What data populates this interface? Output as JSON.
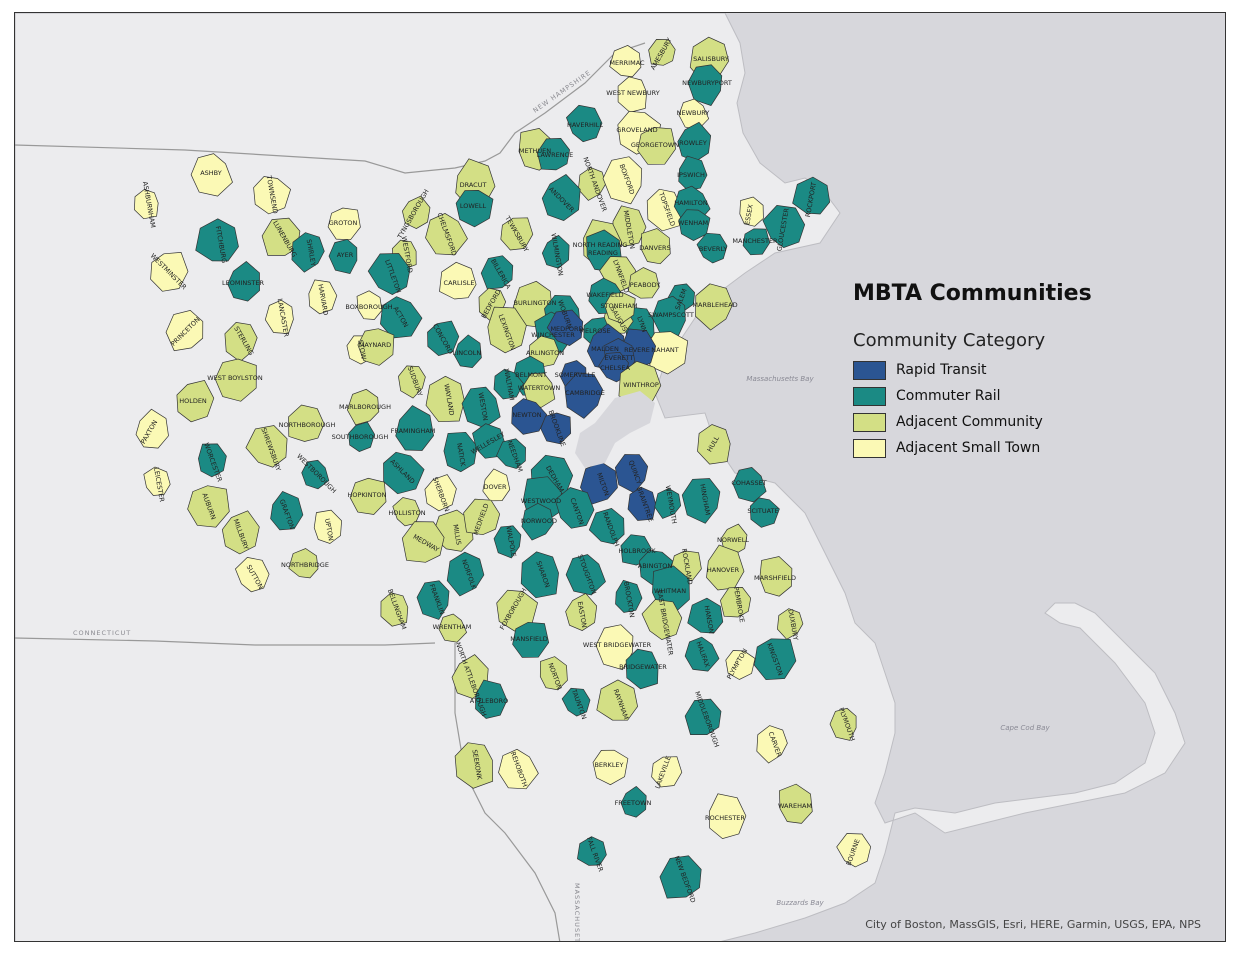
{
  "title": "MBTA Communities",
  "legend": {
    "heading": "Community Category",
    "items": [
      {
        "label": "Rapid Transit",
        "color": "#2b5592"
      },
      {
        "label": "Commuter Rail",
        "color": "#1b8a84"
      },
      {
        "label": "Adjacent Community",
        "color": "#d3df85"
      },
      {
        "label": "Adjacent Small Town",
        "color": "#fbf9b5"
      }
    ]
  },
  "attribution": "City of Boston, MassGIS, Esri, HERE, Garmin, USGS, EPA, NPS",
  "water_labels": [
    "Massachusetts Bay",
    "Cape Cod Bay",
    "Buzzards Bay"
  ],
  "state_labels": [
    "NEW HAMPSHIRE",
    "CONNECTICUT",
    "MASSACHUSETTS"
  ],
  "towns": [
    {
      "name": "ASHBURNHAM",
      "category": "Adjacent Small Town"
    },
    {
      "name": "ASHBY",
      "category": "Adjacent Small Town"
    },
    {
      "name": "TOWNSEND",
      "category": "Adjacent Small Town"
    },
    {
      "name": "GROTON",
      "category": "Adjacent Small Town"
    },
    {
      "name": "TYNGSBOROUGH",
      "category": "Adjacent Community"
    },
    {
      "name": "DRACUT",
      "category": "Adjacent Community"
    },
    {
      "name": "METHUEN",
      "category": "Adjacent Community"
    },
    {
      "name": "HAVERHILL",
      "category": "Commuter Rail"
    },
    {
      "name": "MERRIMAC",
      "category": "Adjacent Small Town"
    },
    {
      "name": "AMESBURY",
      "category": "Adjacent Community"
    },
    {
      "name": "SALISBURY",
      "category": "Adjacent Community"
    },
    {
      "name": "NEWBURYPORT",
      "category": "Commuter Rail"
    },
    {
      "name": "WEST NEWBURY",
      "category": "Adjacent Small Town"
    },
    {
      "name": "NEWBURY",
      "category": "Adjacent Small Town"
    },
    {
      "name": "GROVELAND",
      "category": "Adjacent Small Town"
    },
    {
      "name": "GEORGETOWN",
      "category": "Adjacent Community"
    },
    {
      "name": "ROWLEY",
      "category": "Commuter Rail"
    },
    {
      "name": "IPSWICH",
      "category": "Commuter Rail"
    },
    {
      "name": "ESSEX",
      "category": "Adjacent Small Town"
    },
    {
      "name": "GLOUCESTER",
      "category": "Commuter Rail"
    },
    {
      "name": "ROCKPORT",
      "category": "Commuter Rail"
    },
    {
      "name": "LAWRENCE",
      "category": "Commuter Rail"
    },
    {
      "name": "NORTH ANDOVER",
      "category": "Adjacent Community"
    },
    {
      "name": "BOXFORD",
      "category": "Adjacent Small Town"
    },
    {
      "name": "TOPSFIELD",
      "category": "Adjacent Small Town"
    },
    {
      "name": "HAMILTON",
      "category": "Commuter Rail"
    },
    {
      "name": "WENHAM",
      "category": "Commuter Rail"
    },
    {
      "name": "MANCHESTER",
      "category": "Commuter Rail"
    },
    {
      "name": "ANDOVER",
      "category": "Commuter Rail"
    },
    {
      "name": "MIDDLETON",
      "category": "Adjacent Community"
    },
    {
      "name": "DANVERS",
      "category": "Adjacent Community"
    },
    {
      "name": "BEVERLY",
      "category": "Commuter Rail"
    },
    {
      "name": "FITCHBURG",
      "category": "Commuter Rail"
    },
    {
      "name": "LUNENBURG",
      "category": "Adjacent Community"
    },
    {
      "name": "SHIRLEY",
      "category": "Commuter Rail"
    },
    {
      "name": "AYER",
      "category": "Commuter Rail"
    },
    {
      "name": "WESTFORD",
      "category": "Adjacent Community"
    },
    {
      "name": "CHELMSFORD",
      "category": "Adjacent Community"
    },
    {
      "name": "LOWELL",
      "category": "Commuter Rail"
    },
    {
      "name": "TEWKSBURY",
      "category": "Adjacent Community"
    },
    {
      "name": "WILMINGTON",
      "category": "Commuter Rail"
    },
    {
      "name": "NORTH READING",
      "category": "Adjacent Community"
    },
    {
      "name": "READING",
      "category": "Commuter Rail"
    },
    {
      "name": "LYNNFIELD",
      "category": "Adjacent Community"
    },
    {
      "name": "PEABODY",
      "category": "Adjacent Community"
    },
    {
      "name": "SALEM",
      "category": "Commuter Rail"
    },
    {
      "name": "MARBLEHEAD",
      "category": "Adjacent Community"
    },
    {
      "name": "SWAMPSCOTT",
      "category": "Commuter Rail"
    },
    {
      "name": "LYNN",
      "category": "Commuter Rail"
    },
    {
      "name": "SAUGUS",
      "category": "Adjacent Community"
    },
    {
      "name": "NAHANT",
      "category": "Adjacent Small Town"
    },
    {
      "name": "WESTMINSTER",
      "category": "Adjacent Small Town"
    },
    {
      "name": "LEOMINSTER",
      "category": "Commuter Rail"
    },
    {
      "name": "HARVARD",
      "category": "Adjacent Small Town"
    },
    {
      "name": "BOXBOROUGH",
      "category": "Adjacent Small Town"
    },
    {
      "name": "LITTLETON",
      "category": "Commuter Rail"
    },
    {
      "name": "CARLISLE",
      "category": "Adjacent Small Town"
    },
    {
      "name": "BILLERICA",
      "category": "Commuter Rail"
    },
    {
      "name": "BEDFORD",
      "category": "Adjacent Community"
    },
    {
      "name": "BURLINGTON",
      "category": "Adjacent Community"
    },
    {
      "name": "WOBURN",
      "category": "Commuter Rail"
    },
    {
      "name": "WAKEFIELD",
      "category": "Commuter Rail"
    },
    {
      "name": "STONEHAM",
      "category": "Adjacent Community"
    },
    {
      "name": "MELROSE",
      "category": "Commuter Rail"
    },
    {
      "name": "MALDEN",
      "category": "Rapid Transit"
    },
    {
      "name": "REVERE",
      "category": "Rapid Transit"
    },
    {
      "name": "EVERETT",
      "category": "Rapid Transit"
    },
    {
      "name": "CHELSEA",
      "category": "Rapid Transit"
    },
    {
      "name": "WINTHROP",
      "category": "Adjacent Community"
    },
    {
      "name": "PRINCETON",
      "category": "Adjacent Small Town"
    },
    {
      "name": "STERLING",
      "category": "Adjacent Community"
    },
    {
      "name": "LANCASTER",
      "category": "Adjacent Small Town"
    },
    {
      "name": "STOW",
      "category": "Adjacent Small Town"
    },
    {
      "name": "ACTON",
      "category": "Commuter Rail"
    },
    {
      "name": "MAYNARD",
      "category": "Adjacent Community"
    },
    {
      "name": "CONCORD",
      "category": "Commuter Rail"
    },
    {
      "name": "LINCOLN",
      "category": "Commuter Rail"
    },
    {
      "name": "LEXINGTON",
      "category": "Adjacent Community"
    },
    {
      "name": "WINCHESTER",
      "category": "Commuter Rail"
    },
    {
      "name": "MEDFORD",
      "category": "Rapid Transit"
    },
    {
      "name": "ARLINGTON",
      "category": "Adjacent Community"
    },
    {
      "name": "SOMERVILLE",
      "category": "Rapid Transit"
    },
    {
      "name": "CAMBRIDGE",
      "category": "Rapid Transit"
    },
    {
      "name": "BELMONT",
      "category": "Commuter Rail"
    },
    {
      "name": "WATERTOWN",
      "category": "Adjacent Community"
    },
    {
      "name": "WALTHAM",
      "category": "Commuter Rail"
    },
    {
      "name": "WEST BOYLSTON",
      "category": "Adjacent Community"
    },
    {
      "name": "HOLDEN",
      "category": "Adjacent Community"
    },
    {
      "name": "PAXTON",
      "category": "Adjacent Small Town"
    },
    {
      "name": "WORCESTER",
      "category": "Commuter Rail"
    },
    {
      "name": "LEICESTER",
      "category": "Adjacent Small Town"
    },
    {
      "name": "SHREWSBURY",
      "category": "Adjacent Community"
    },
    {
      "name": "NORTHBOROUGH",
      "category": "Adjacent Community"
    },
    {
      "name": "MARLBOROUGH",
      "category": "Adjacent Community"
    },
    {
      "name": "SUDBURY",
      "category": "Adjacent Community"
    },
    {
      "name": "WAYLAND",
      "category": "Adjacent Community"
    },
    {
      "name": "WESTON",
      "category": "Commuter Rail"
    },
    {
      "name": "NEWTON",
      "category": "Rapid Transit"
    },
    {
      "name": "BROOKLINE",
      "category": "Rapid Transit"
    },
    {
      "name": "SOUTHBOROUGH",
      "category": "Commuter Rail"
    },
    {
      "name": "FRAMINGHAM",
      "category": "Commuter Rail"
    },
    {
      "name": "NATICK",
      "category": "Commuter Rail"
    },
    {
      "name": "WELLESLEY",
      "category": "Commuter Rail"
    },
    {
      "name": "NEEDHAM",
      "category": "Commuter Rail"
    },
    {
      "name": "DEDHAM",
      "category": "Commuter Rail"
    },
    {
      "name": "MILTON",
      "category": "Rapid Transit"
    },
    {
      "name": "QUINCY",
      "category": "Rapid Transit"
    },
    {
      "name": "BRAINTREE",
      "category": "Rapid Transit"
    },
    {
      "name": "WESTBOROUGH",
      "category": "Commuter Rail"
    },
    {
      "name": "ASHLAND",
      "category": "Commuter Rail"
    },
    {
      "name": "HOPKINTON",
      "category": "Adjacent Community"
    },
    {
      "name": "SHERBORN",
      "category": "Adjacent Small Town"
    },
    {
      "name": "DOVER",
      "category": "Adjacent Small Town"
    },
    {
      "name": "WESTWOOD",
      "category": "Commuter Rail"
    },
    {
      "name": "CANTON",
      "category": "Commuter Rail"
    },
    {
      "name": "RANDOLPH",
      "category": "Commuter Rail"
    },
    {
      "name": "HOLBROOK",
      "category": "Commuter Rail"
    },
    {
      "name": "WEYMOUTH",
      "category": "Commuter Rail"
    },
    {
      "name": "HINGHAM",
      "category": "Commuter Rail"
    },
    {
      "name": "HULL",
      "category": "Adjacent Community"
    },
    {
      "name": "COHASSET",
      "category": "Commuter Rail"
    },
    {
      "name": "SCITUATE",
      "category": "Commuter Rail"
    },
    {
      "name": "AUBURN",
      "category": "Adjacent Community"
    },
    {
      "name": "MILLBURY",
      "category": "Adjacent Community"
    },
    {
      "name": "GRAFTON",
      "category": "Commuter Rail"
    },
    {
      "name": "UPTON",
      "category": "Adjacent Small Town"
    },
    {
      "name": "HOLLISTON",
      "category": "Adjacent Community"
    },
    {
      "name": "MILLIS",
      "category": "Adjacent Community"
    },
    {
      "name": "MEDFIELD",
      "category": "Adjacent Community"
    },
    {
      "name": "NORWOOD",
      "category": "Commuter Rail"
    },
    {
      "name": "WALPOLE",
      "category": "Commuter Rail"
    },
    {
      "name": "SHARON",
      "category": "Commuter Rail"
    },
    {
      "name": "STOUGHTON",
      "category": "Commuter Rail"
    },
    {
      "name": "ABINGTON",
      "category": "Commuter Rail"
    },
    {
      "name": "ROCKLAND",
      "category": "Adjacent Community"
    },
    {
      "name": "NORWELL",
      "category": "Adjacent Community"
    },
    {
      "name": "HANOVER",
      "category": "Adjacent Community"
    },
    {
      "name": "MARSHFIELD",
      "category": "Adjacent Community"
    },
    {
      "name": "SUTTON",
      "category": "Adjacent Small Town"
    },
    {
      "name": "NORTHBRIDGE",
      "category": "Adjacent Community"
    },
    {
      "name": "MEDWAY",
      "category": "Adjacent Community"
    },
    {
      "name": "NORFOLK",
      "category": "Commuter Rail"
    },
    {
      "name": "FRANKLIN",
      "category": "Commuter Rail"
    },
    {
      "name": "BELLINGHAM",
      "category": "Adjacent Community"
    },
    {
      "name": "WRENTHAM",
      "category": "Adjacent Community"
    },
    {
      "name": "FOXBOROUGH",
      "category": "Adjacent Community"
    },
    {
      "name": "MANSFIELD",
      "category": "Commuter Rail"
    },
    {
      "name": "EASTON",
      "category": "Adjacent Community"
    },
    {
      "name": "BROCKTON",
      "category": "Commuter Rail"
    },
    {
      "name": "WHITMAN",
      "category": "Commuter Rail"
    },
    {
      "name": "EAST BRIDGEWATER",
      "category": "Adjacent Community"
    },
    {
      "name": "HANSON",
      "category": "Commuter Rail"
    },
    {
      "name": "PEMBROKE",
      "category": "Adjacent Community"
    },
    {
      "name": "DUXBURY",
      "category": "Adjacent Community"
    },
    {
      "name": "WEST BRIDGEWATER",
      "category": "Adjacent Small Town"
    },
    {
      "name": "BRIDGEWATER",
      "category": "Commuter Rail"
    },
    {
      "name": "HALIFAX",
      "category": "Commuter Rail"
    },
    {
      "name": "PLYMPTON",
      "category": "Adjacent Small Town"
    },
    {
      "name": "KINGSTON",
      "category": "Commuter Rail"
    },
    {
      "name": "NORTH ATTLEBOROUGH",
      "category": "Adjacent Community"
    },
    {
      "name": "ATTLEBORO",
      "category": "Commuter Rail"
    },
    {
      "name": "NORTON",
      "category": "Adjacent Community"
    },
    {
      "name": "TAUNTON",
      "category": "Commuter Rail"
    },
    {
      "name": "RAYNHAM",
      "category": "Adjacent Community"
    },
    {
      "name": "MIDDLEBOROUGH",
      "category": "Commuter Rail"
    },
    {
      "name": "CARVER",
      "category": "Adjacent Small Town"
    },
    {
      "name": "PLYMOUTH",
      "category": "Adjacent Community"
    },
    {
      "name": "SEEKONK",
      "category": "Adjacent Community"
    },
    {
      "name": "REHOBOTH",
      "category": "Adjacent Small Town"
    },
    {
      "name": "BERKLEY",
      "category": "Adjacent Small Town"
    },
    {
      "name": "LAKEVILLE",
      "category": "Adjacent Small Town"
    },
    {
      "name": "FREETOWN",
      "category": "Commuter Rail"
    },
    {
      "name": "ROCHESTER",
      "category": "Adjacent Small Town"
    },
    {
      "name": "WAREHAM",
      "category": "Adjacent Community"
    },
    {
      "name": "BOURNE",
      "category": "Adjacent Small Town"
    },
    {
      "name": "FALL RIVER",
      "category": "Commuter Rail"
    },
    {
      "name": "NEW BEDFORD",
      "category": "Commuter Rail"
    }
  ]
}
